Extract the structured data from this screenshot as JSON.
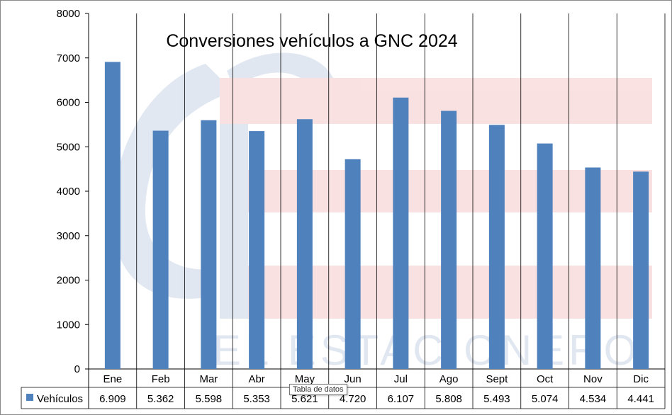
{
  "chart_data": {
    "type": "bar",
    "title": "Conversiones vehículos a GNC 2024",
    "categories": [
      "Ene",
      "Feb",
      "Mar",
      "Abr",
      "May",
      "Jun",
      "Jul",
      "Ago",
      "Sept",
      "Oct",
      "Nov",
      "Dic"
    ],
    "series": [
      {
        "name": "Vehículos",
        "values": [
          6909,
          5362,
          5598,
          5353,
          5621,
          4720,
          6107,
          5808,
          5493,
          5074,
          4534,
          4441
        ],
        "labels": [
          "6.909",
          "5.362",
          "5.598",
          "5.353",
          "5.621",
          "4.720",
          "6.107",
          "5.808",
          "5.493",
          "5.074",
          "4.534",
          "4.441"
        ]
      }
    ],
    "ylim": [
      0,
      8000
    ],
    "yticks": [
      "0",
      "1000",
      "2000",
      "3000",
      "4000",
      "5000",
      "6000",
      "7000",
      "8000"
    ],
    "grid": "vertical",
    "legend": "data-table",
    "color": "#4f81bd"
  },
  "watermark": "EL ESTACIONERO",
  "tooltip": "Tabla de datos"
}
